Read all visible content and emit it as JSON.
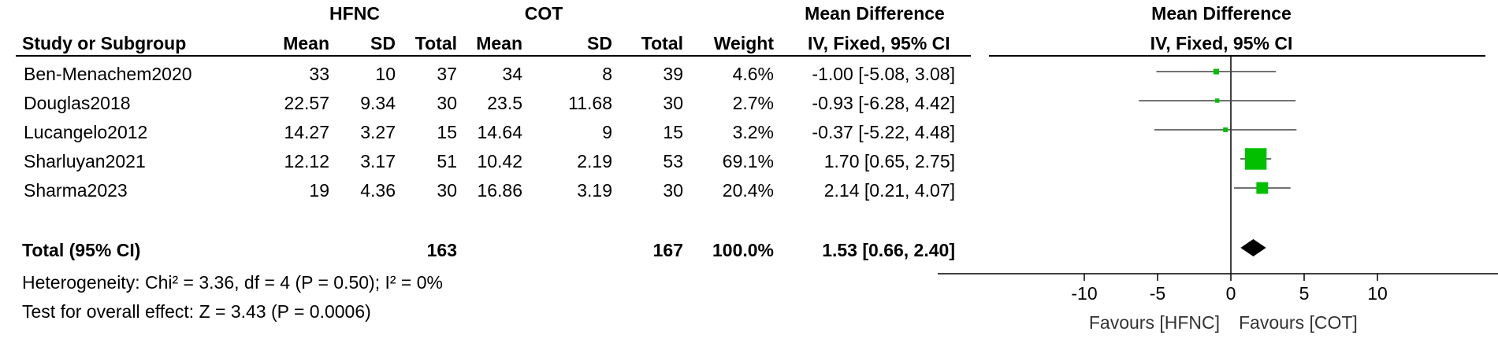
{
  "header": {
    "group1": "HFNC",
    "group2": "COT",
    "effect_table": "Mean Difference",
    "effect_plot": "Mean Difference",
    "method_table": "IV, Fixed, 95% CI",
    "method_plot": "IV, Fixed, 95% CI",
    "col_study": "Study or Subgroup",
    "col_mean1": "Mean",
    "col_sd1": "SD",
    "col_total1": "Total",
    "col_mean2": "Mean",
    "col_sd2": "SD",
    "col_total2": "Total",
    "col_weight": "Weight"
  },
  "studies": [
    {
      "name": "Ben-Menachem2020",
      "mean1": "33",
      "sd1": "10",
      "n1": "37",
      "mean2": "34",
      "sd2": "8",
      "n2": "39",
      "weight": "4.6%",
      "ci_text": "-1.00 [-5.08, 3.08]"
    },
    {
      "name": "Douglas2018",
      "mean1": "22.57",
      "sd1": "9.34",
      "n1": "30",
      "mean2": "23.5",
      "sd2": "11.68",
      "n2": "30",
      "weight": "2.7%",
      "ci_text": "-0.93 [-6.28, 4.42]"
    },
    {
      "name": "Lucangelo2012",
      "mean1": "14.27",
      "sd1": "3.27",
      "n1": "15",
      "mean2": "14.64",
      "sd2": "9",
      "n2": "15",
      "weight": "3.2%",
      "ci_text": "-0.37 [-5.22, 4.48]"
    },
    {
      "name": "Sharluyan2021",
      "mean1": "12.12",
      "sd1": "3.17",
      "n1": "51",
      "mean2": "10.42",
      "sd2": "2.19",
      "n2": "53",
      "weight": "69.1%",
      "ci_text": "1.70 [0.65, 2.75]"
    },
    {
      "name": "Sharma2023",
      "mean1": "19",
      "sd1": "4.36",
      "n1": "30",
      "mean2": "16.86",
      "sd2": "3.19",
      "n2": "30",
      "weight": "20.4%",
      "ci_text": "2.14 [0.21, 4.07]"
    }
  ],
  "total": {
    "label": "Total (95% CI)",
    "n1": "163",
    "n2": "167",
    "weight": "100.0%",
    "ci_text": "1.53 [0.66, 2.40]"
  },
  "footer": {
    "heterogeneity": "Heterogeneity: Chi² = 3.36, df = 4 (P = 0.50); I² = 0%",
    "overall": "Test for overall effect: Z = 3.43 (P = 0.0006)"
  },
  "chart_data": {
    "type": "forest",
    "x_label_left": "Favours [HFNC]",
    "x_label_right": "Favours [COT]",
    "xlim": [
      -20,
      20
    ],
    "ticks": [
      -10,
      -5,
      0,
      5,
      10
    ],
    "tick_labels": [
      "-10",
      "-5",
      "0",
      "5",
      "10"
    ],
    "point_color": "#00c000",
    "studies": [
      {
        "name": "Ben-Menachem2020",
        "estimate": -1.0,
        "lower": -5.08,
        "upper": 3.08,
        "weight": 4.6
      },
      {
        "name": "Douglas2018",
        "estimate": -0.93,
        "lower": -6.28,
        "upper": 4.42,
        "weight": 2.7
      },
      {
        "name": "Lucangelo2012",
        "estimate": -0.37,
        "lower": -5.22,
        "upper": 4.48,
        "weight": 3.2
      },
      {
        "name": "Sharluyan2021",
        "estimate": 1.7,
        "lower": 0.65,
        "upper": 2.75,
        "weight": 69.1
      },
      {
        "name": "Sharma2023",
        "estimate": 2.14,
        "lower": 0.21,
        "upper": 4.07,
        "weight": 20.4
      }
    ],
    "total": {
      "estimate": 1.53,
      "lower": 0.66,
      "upper": 2.4
    }
  }
}
